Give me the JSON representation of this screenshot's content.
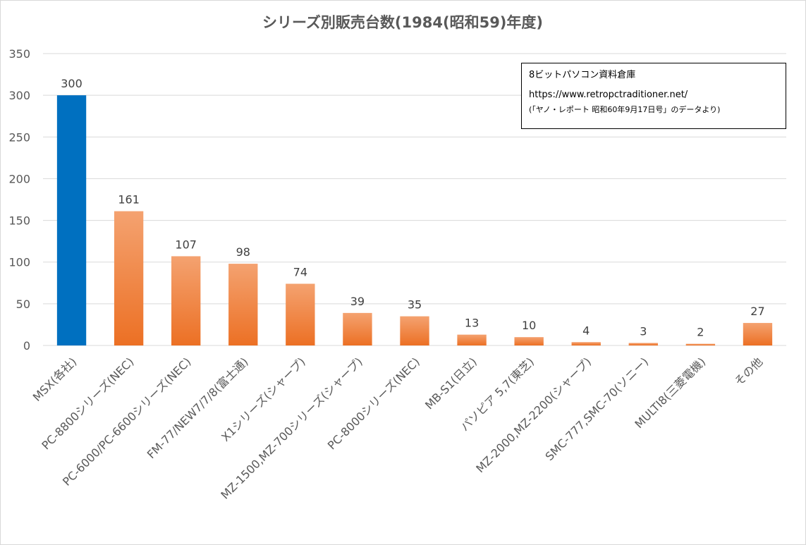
{
  "chart_data": {
    "type": "bar",
    "title": "シリーズ別販売台数(1984(昭和59)年度)",
    "categories": [
      "MSX(各社)",
      "PC-8800シリーズ(NEC)",
      "PC-6000/PC-6600シリーズ(NEC)",
      "FM-77/NEW7/7/8(富士通)",
      "X1シリーズ(シャープ)",
      "MZ-1500,MZ-700シリーズ(シャープ)",
      "PC-8000シリーズ(NEC)",
      "MB-S1(日立)",
      "パソピア 5,7(東芝)",
      "MZ-2000,MZ-2200(シャープ)",
      "SMC-777,SMC-70(ソニー)",
      "MULTI8(三菱電機)",
      "その他"
    ],
    "values": [
      300,
      161,
      107,
      98,
      74,
      39,
      35,
      13,
      10,
      4,
      3,
      2,
      27
    ],
    "ylim": [
      0,
      350
    ],
    "yticks": [
      0,
      50,
      100,
      150,
      200,
      250,
      300,
      350
    ],
    "grid": true,
    "legend": "none",
    "colors": {
      "highlight": "#0070c0",
      "bar_top": "#f4a270",
      "bar_bottom": "#ec7024",
      "grid": "#d9d9d9",
      "text": "#595959"
    },
    "highlight_index": 0
  },
  "note": {
    "line1": "8ビットパソコン資料倉庫",
    "line2": "https://www.retropctraditioner.net/",
    "line3": "(「ヤノ・レポート 昭和60年9月17日号」のデータより)"
  }
}
